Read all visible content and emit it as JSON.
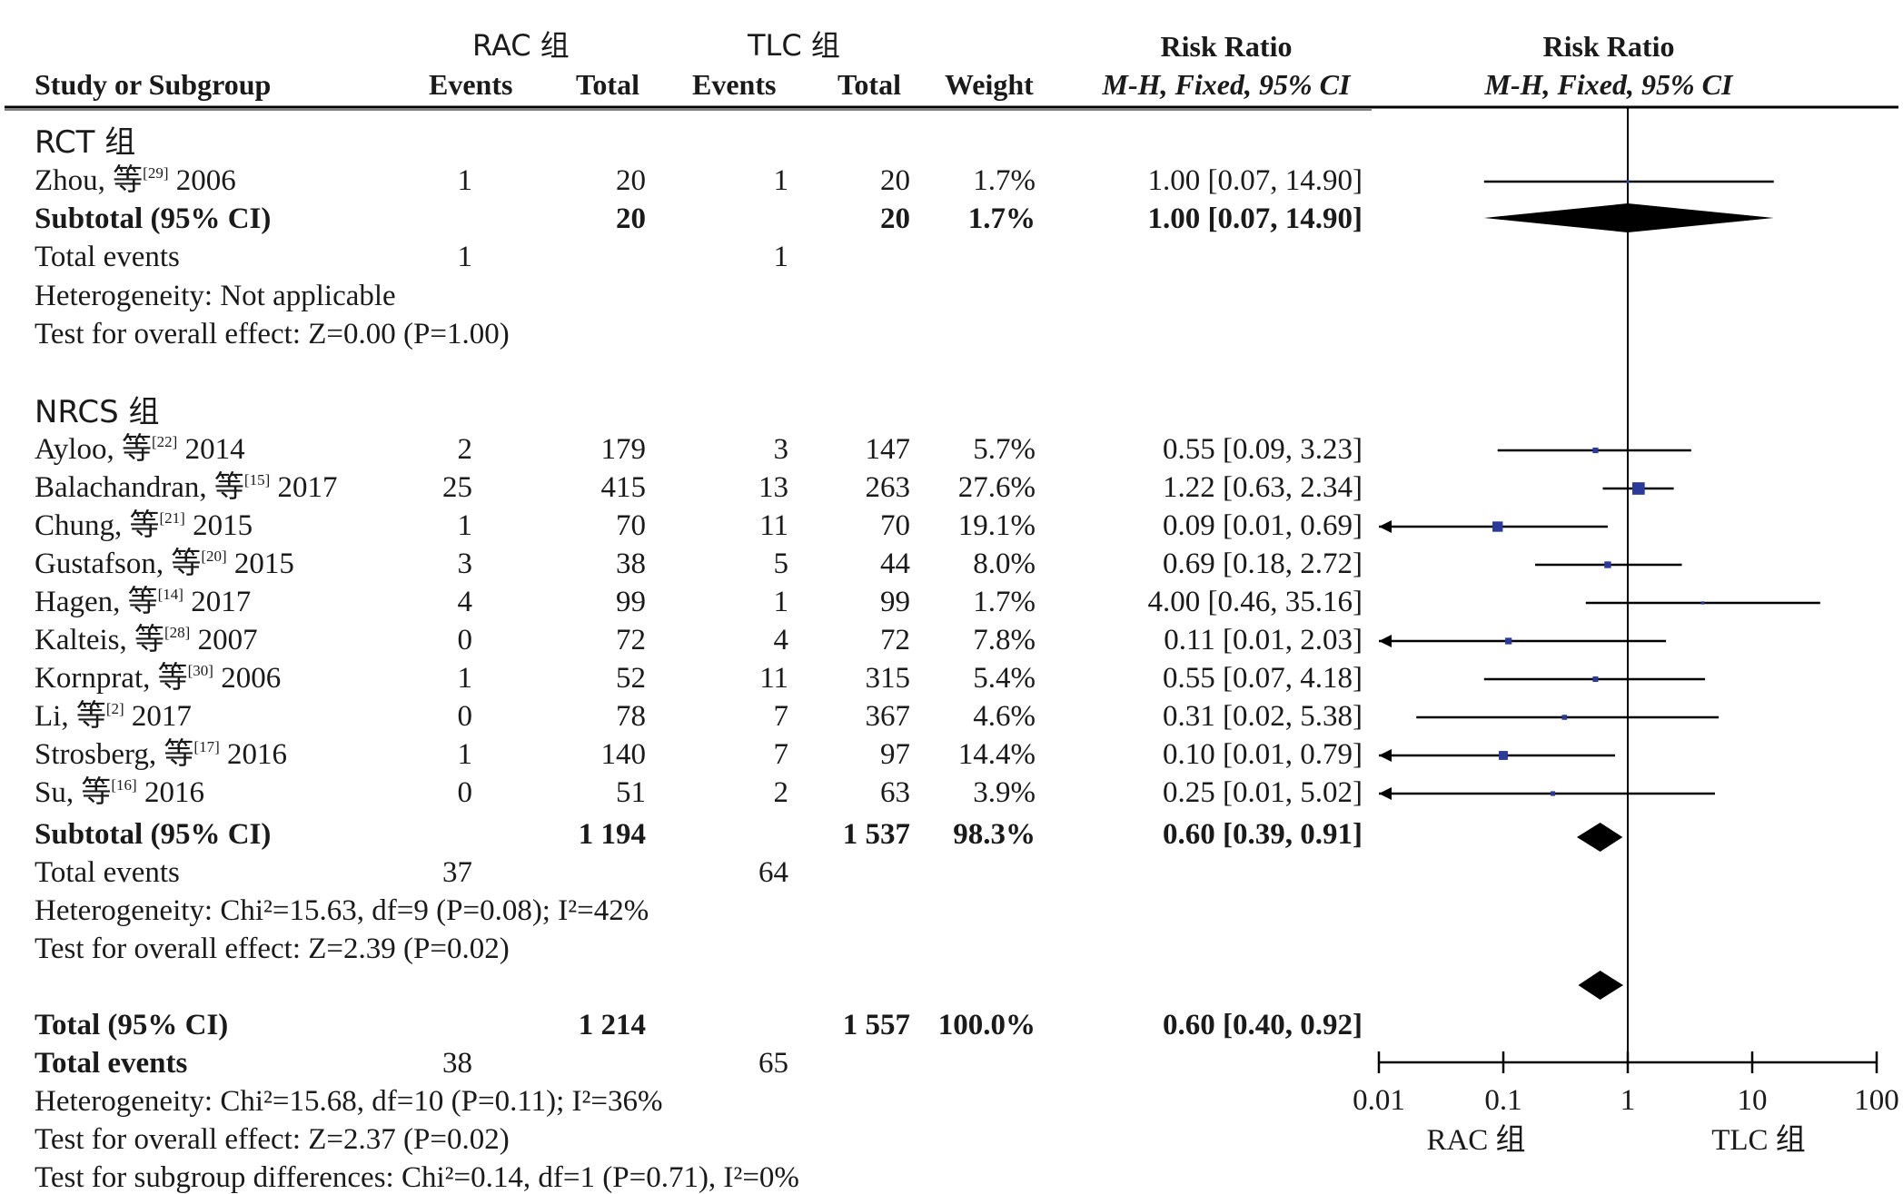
{
  "headers": {
    "group1": "RAC 组",
    "group2": "TLC 组",
    "study": "Study or Subgroup",
    "events1": "Events",
    "total1": "Total",
    "events2": "Events",
    "total2": "Total",
    "weight": "Weight",
    "rr_title": "Risk Ratio",
    "rr_method": "M-H, Fixed, 95% CI",
    "plot_title": "Risk Ratio",
    "plot_method": "M-H, Fixed, 95% CI"
  },
  "subgroups": [
    {
      "name": "RCT 组",
      "studies": [
        {
          "author": "Zhou, 等",
          "ref": "[29]",
          "year": "2006",
          "e1": "1",
          "n1": "20",
          "e2": "1",
          "n2": "20",
          "weight": "1.7%",
          "ci_text": "1.00 [0.07, 14.90]"
        }
      ],
      "subtotal": {
        "label": "Subtotal (95% CI)",
        "n1": "20",
        "n2": "20",
        "weight": "1.7%",
        "ci_text": "1.00 [0.07, 14.90]"
      },
      "total_events": {
        "label": "Total events",
        "e1": "1",
        "e2": "1"
      },
      "heterogeneity": "Heterogeneity: Not applicable",
      "overall_effect": "Test for overall effect: Z=0.00 (P=1.00)"
    },
    {
      "name": "NRCS 组",
      "studies": [
        {
          "author": "Ayloo, 等",
          "ref": "[22]",
          "year": "2014",
          "e1": "2",
          "n1": "179",
          "e2": "3",
          "n2": "147",
          "weight": "5.7%",
          "ci_text": "0.55 [0.09, 3.23]"
        },
        {
          "author": "Balachandran, 等",
          "ref": "[15]",
          "year": "2017",
          "e1": "25",
          "n1": "415",
          "e2": "13",
          "n2": "263",
          "weight": "27.6%",
          "ci_text": "1.22 [0.63, 2.34]"
        },
        {
          "author": "Chung, 等",
          "ref": "[21]",
          "year": "2015",
          "e1": "1",
          "n1": "70",
          "e2": "11",
          "n2": "70",
          "weight": "19.1%",
          "ci_text": "0.09 [0.01, 0.69]"
        },
        {
          "author": "Gustafson, 等",
          "ref": "[20]",
          "year": "2015",
          "e1": "3",
          "n1": "38",
          "e2": "5",
          "n2": "44",
          "weight": "8.0%",
          "ci_text": "0.69 [0.18, 2.72]"
        },
        {
          "author": "Hagen, 等",
          "ref": "[14]",
          "year": "2017",
          "e1": "4",
          "n1": "99",
          "e2": "1",
          "n2": "99",
          "weight": "1.7%",
          "ci_text": "4.00 [0.46, 35.16]"
        },
        {
          "author": "Kalteis, 等",
          "ref": "[28]",
          "year": "2007",
          "e1": "0",
          "n1": "72",
          "e2": "4",
          "n2": "72",
          "weight": "7.8%",
          "ci_text": "0.11 [0.01, 2.03]"
        },
        {
          "author": "Kornprat, 等",
          "ref": "[30]",
          "year": "2006",
          "e1": "1",
          "n1": "52",
          "e2": "11",
          "n2": "315",
          "weight": "5.4%",
          "ci_text": "0.55 [0.07, 4.18]"
        },
        {
          "author": "Li, 等",
          "ref": "[2]",
          "year": "2017",
          "e1": "0",
          "n1": "78",
          "e2": "7",
          "n2": "367",
          "weight": "4.6%",
          "ci_text": "0.31 [0.02, 5.38]"
        },
        {
          "author": "Strosberg, 等",
          "ref": "[17]",
          "year": "2016",
          "e1": "1",
          "n1": "140",
          "e2": "7",
          "n2": "97",
          "weight": "14.4%",
          "ci_text": "0.10 [0.01, 0.79]"
        },
        {
          "author": "Su, 等",
          "ref": "[16]",
          "year": "2016",
          "e1": "0",
          "n1": "51",
          "e2": "2",
          "n2": "63",
          "weight": "3.9%",
          "ci_text": "0.25 [0.01, 5.02]"
        }
      ],
      "subtotal": {
        "label": "Subtotal (95% CI)",
        "n1": "1 194",
        "n2": "1 537",
        "weight": "98.3%",
        "ci_text": "0.60 [0.39, 0.91]"
      },
      "total_events": {
        "label": "Total events",
        "e1": "37",
        "e2": "64"
      },
      "heterogeneity": "Heterogeneity: Chi²=15.63, df=9 (P=0.08); I²=42%",
      "overall_effect": "Test for overall effect: Z=2.39 (P=0.02)"
    }
  ],
  "overall": {
    "label": "Total (95% CI)",
    "n1": "1 214",
    "n2": "1 557",
    "weight": "100.0%",
    "ci_text": "0.60 [0.40, 0.92]",
    "events_label": "Total events",
    "e1": "38",
    "e2": "65",
    "heterogeneity": "Heterogeneity: Chi²=15.68, df=10 (P=0.11); I²=36%",
    "overall_effect": "Test for overall effect: Z=2.37 (P=0.02)",
    "subgroup_diff": "Test for subgroup differences: Chi²=0.14, df=1 (P=0.71), I²=0%"
  },
  "axis": {
    "ticks": [
      "0.01",
      "0.1",
      "1",
      "10",
      "100"
    ],
    "favours_left": "RAC 组",
    "favours_right": "TLC 组"
  },
  "colors": {
    "study_marker": "#2a3a9a",
    "summary_diamond": "#000000",
    "lines": "#000000"
  },
  "chart_data": {
    "type": "forest",
    "scale": "log",
    "xlim": [
      0.01,
      100
    ],
    "reference_line": 1,
    "studies": [
      {
        "subgroup": "RCT 组",
        "rr": 1.0,
        "lo": 0.07,
        "hi": 14.9,
        "weight": 1.7
      },
      {
        "subgroup": "NRCS 组",
        "rr": 0.55,
        "lo": 0.09,
        "hi": 3.23,
        "weight": 5.7
      },
      {
        "subgroup": "NRCS 组",
        "rr": 1.22,
        "lo": 0.63,
        "hi": 2.34,
        "weight": 27.6
      },
      {
        "subgroup": "NRCS 组",
        "rr": 0.09,
        "lo": 0.01,
        "hi": 0.69,
        "weight": 19.1
      },
      {
        "subgroup": "NRCS 组",
        "rr": 0.69,
        "lo": 0.18,
        "hi": 2.72,
        "weight": 8.0
      },
      {
        "subgroup": "NRCS 组",
        "rr": 4.0,
        "lo": 0.46,
        "hi": 35.16,
        "weight": 1.7
      },
      {
        "subgroup": "NRCS 组",
        "rr": 0.11,
        "lo": 0.01,
        "hi": 2.03,
        "weight": 7.8
      },
      {
        "subgroup": "NRCS 组",
        "rr": 0.55,
        "lo": 0.07,
        "hi": 4.18,
        "weight": 5.4
      },
      {
        "subgroup": "NRCS 组",
        "rr": 0.31,
        "lo": 0.02,
        "hi": 5.38,
        "weight": 4.6
      },
      {
        "subgroup": "NRCS 组",
        "rr": 0.1,
        "lo": 0.01,
        "hi": 0.79,
        "weight": 14.4
      },
      {
        "subgroup": "NRCS 组",
        "rr": 0.25,
        "lo": 0.01,
        "hi": 5.02,
        "weight": 3.9
      }
    ],
    "summaries": [
      {
        "label": "Subtotal (95% CI)",
        "subgroup": "RCT 组",
        "rr": 1.0,
        "lo": 0.07,
        "hi": 14.9
      },
      {
        "label": "Subtotal (95% CI)",
        "subgroup": "NRCS 组",
        "rr": 0.6,
        "lo": 0.39,
        "hi": 0.91
      },
      {
        "label": "Total (95% CI)",
        "rr": 0.6,
        "lo": 0.4,
        "hi": 0.92
      }
    ]
  }
}
